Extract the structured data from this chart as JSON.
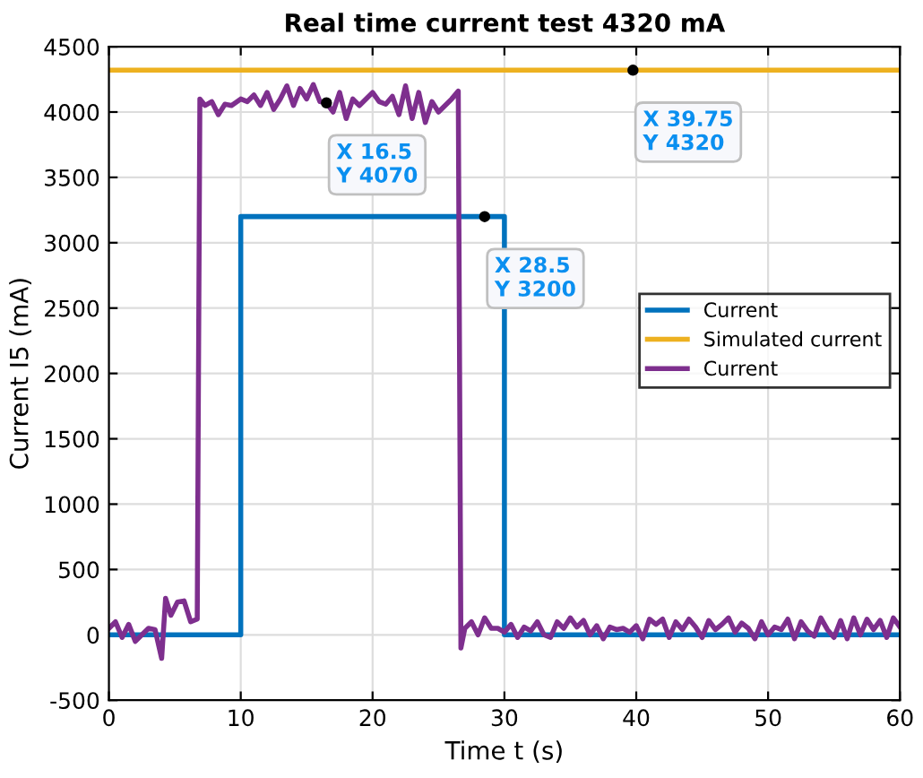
{
  "chart_data": {
    "type": "line",
    "title": "Real time current test 4320 mA",
    "xlabel": "Time t (s)",
    "ylabel": "Current I5 (mA)",
    "series": [
      {
        "name": "Current",
        "color": "#0072bd",
        "x": [
          0,
          10,
          10,
          30,
          30,
          60
        ],
        "values": [
          0,
          0,
          3200,
          3200,
          0,
          0
        ]
      },
      {
        "name": "Simulated current",
        "color": "#edb120",
        "x": [
          0,
          60
        ],
        "values": [
          4320,
          4320
        ]
      },
      {
        "name": "Current",
        "color": "#7e2f8e",
        "x": [
          0,
          0.5,
          1,
          1.5,
          2,
          2.5,
          3,
          3.5,
          4,
          4.3,
          4.7,
          5.2,
          5.7,
          6.2,
          6.7,
          6.9,
          7.3,
          7.8,
          8.3,
          8.8,
          9.3,
          10,
          10.5,
          11,
          11.5,
          12,
          12.5,
          13,
          13.5,
          14,
          14.5,
          15,
          15.5,
          16,
          16.5,
          17,
          17.5,
          18,
          18.5,
          19,
          19.5,
          20,
          20.5,
          21,
          21.5,
          22,
          22.5,
          23,
          23.5,
          24,
          24.5,
          25,
          25.5,
          26,
          26.5,
          26.7,
          27,
          27.5,
          28,
          28.5,
          29,
          29.5,
          30,
          30.5,
          31,
          31.5,
          32,
          32.5,
          33,
          33.5,
          34,
          34.5,
          35,
          35.5,
          36,
          36.5,
          37,
          37.5,
          38,
          38.5,
          39,
          39.5,
          40,
          40.5,
          41,
          41.5,
          42,
          42.5,
          43,
          43.5,
          44,
          44.5,
          45,
          45.5,
          46,
          46.5,
          47,
          47.5,
          48,
          48.5,
          49,
          49.5,
          50,
          50.5,
          51,
          51.5,
          52,
          52.5,
          53,
          53.5,
          54,
          54.5,
          55,
          55.5,
          56,
          56.5,
          57,
          57.5,
          58,
          58.5,
          59,
          59.5,
          60
        ],
        "values": [
          50,
          100,
          -20,
          80,
          -50,
          0,
          50,
          40,
          -180,
          280,
          150,
          250,
          260,
          100,
          120,
          4100,
          4050,
          4080,
          3980,
          4060,
          4050,
          4100,
          4080,
          4130,
          4050,
          4150,
          4020,
          4100,
          4200,
          4050,
          4180,
          4100,
          4210,
          4080,
          4070,
          4000,
          4150,
          3950,
          4100,
          4050,
          4100,
          4150,
          4080,
          4060,
          4120,
          3980,
          4200,
          3950,
          4150,
          3920,
          4080,
          4000,
          4050,
          4100,
          4160,
          -100,
          50,
          100,
          0,
          130,
          50,
          50,
          20,
          80,
          -20,
          60,
          30,
          100,
          0,
          -20,
          100,
          50,
          130,
          60,
          110,
          0,
          70,
          -30,
          60,
          40,
          50,
          20,
          70,
          -30,
          120,
          80,
          120,
          -20,
          100,
          40,
          120,
          60,
          -20,
          110,
          40,
          80,
          130,
          20,
          90,
          50,
          -30,
          100,
          0,
          60,
          40,
          120,
          -30,
          100,
          30,
          -10,
          130,
          40,
          -20,
          110,
          -30,
          130,
          0,
          120,
          40,
          110,
          -20,
          130,
          60
        ]
      }
    ],
    "annotations": [
      {
        "text": "X 16.5\nY 4070",
        "x": 16.5,
        "y": 4070
      },
      {
        "text": "X 28.5\nY 3200",
        "x": 28.5,
        "y": 3200
      },
      {
        "text": "X 39.75\nY 4320",
        "x": 39.75,
        "y": 4320
      }
    ],
    "xlim": [
      0,
      60
    ],
    "ylim": [
      -500,
      4500
    ],
    "xticks": [
      0,
      10,
      20,
      30,
      40,
      50,
      60
    ],
    "yticks": [
      -500,
      0,
      500,
      1000,
      1500,
      2000,
      2500,
      3000,
      3500,
      4000,
      4500
    ],
    "grid": true,
    "legend": "right",
    "line_style": "solid",
    "marker": "none"
  }
}
